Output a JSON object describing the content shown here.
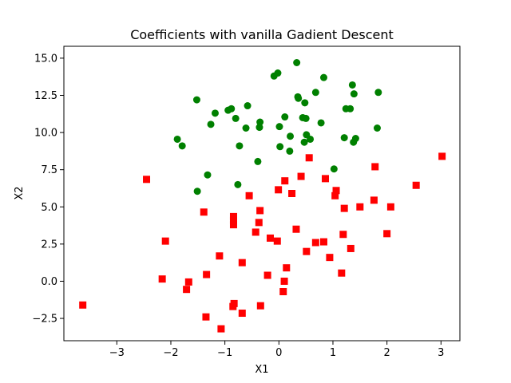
{
  "chart_data": {
    "type": "scatter",
    "title": "Coefficients with vanilla Gadient Descent",
    "xlabel": "X1",
    "ylabel": "X2",
    "xlim": [
      -3.98,
      3.35
    ],
    "ylim": [
      -4.0,
      15.8
    ],
    "xticks": [
      -3,
      -2,
      -1,
      0,
      1,
      2,
      3
    ],
    "xtick_labels": [
      "−3",
      "−2",
      "−1",
      "0",
      "1",
      "2",
      "3"
    ],
    "yticks": [
      -2.5,
      0.0,
      2.5,
      5.0,
      7.5,
      10.0,
      12.5,
      15.0
    ],
    "ytick_labels": [
      "−2.5",
      "0.0",
      "2.5",
      "5.0",
      "7.5",
      "10.0",
      "12.5",
      "15.0"
    ],
    "grid": false,
    "series": [
      {
        "marker": "circle",
        "color": "#008000",
        "points": [
          [
            0.33,
            14.7
          ],
          [
            -0.02,
            14.0
          ],
          [
            -0.09,
            13.8
          ],
          [
            0.83,
            13.7
          ],
          [
            1.36,
            13.2
          ],
          [
            1.39,
            12.6
          ],
          [
            1.84,
            12.7
          ],
          [
            0.68,
            12.7
          ],
          [
            0.35,
            12.4
          ],
          [
            0.36,
            12.3
          ],
          [
            -1.52,
            12.2
          ],
          [
            0.48,
            12.0
          ],
          [
            -0.58,
            11.8
          ],
          [
            -0.94,
            11.5
          ],
          [
            -0.88,
            11.6
          ],
          [
            1.24,
            11.6
          ],
          [
            1.32,
            11.6
          ],
          [
            -1.18,
            11.3
          ],
          [
            -0.8,
            10.95
          ],
          [
            0.11,
            11.05
          ],
          [
            0.44,
            11.0
          ],
          [
            0.5,
            10.95
          ],
          [
            -1.26,
            10.55
          ],
          [
            -0.35,
            10.7
          ],
          [
            0.78,
            10.65
          ],
          [
            0.01,
            10.4
          ],
          [
            -0.36,
            10.35
          ],
          [
            -0.61,
            10.3
          ],
          [
            1.82,
            10.3
          ],
          [
            0.51,
            9.85
          ],
          [
            0.21,
            9.75
          ],
          [
            0.58,
            9.55
          ],
          [
            1.21,
            9.65
          ],
          [
            1.42,
            9.6
          ],
          [
            1.38,
            9.35
          ],
          [
            -1.88,
            9.55
          ],
          [
            0.47,
            9.35
          ],
          [
            -1.79,
            9.1
          ],
          [
            0.02,
            9.05
          ],
          [
            -0.73,
            9.1
          ],
          [
            0.2,
            8.75
          ],
          [
            -0.39,
            8.05
          ],
          [
            1.02,
            7.55
          ],
          [
            -1.32,
            7.15
          ],
          [
            -0.76,
            6.5
          ],
          [
            -1.51,
            6.05
          ]
        ]
      },
      {
        "marker": "square",
        "color": "#ff0000",
        "points": [
          [
            3.02,
            8.4
          ],
          [
            0.56,
            8.3
          ],
          [
            1.78,
            7.7
          ],
          [
            0.41,
            7.05
          ],
          [
            0.86,
            6.9
          ],
          [
            -2.45,
            6.85
          ],
          [
            0.11,
            6.75
          ],
          [
            2.54,
            6.45
          ],
          [
            1.06,
            6.1
          ],
          [
            -0.01,
            6.15
          ],
          [
            0.24,
            5.9
          ],
          [
            -0.55,
            5.75
          ],
          [
            1.04,
            5.75
          ],
          [
            1.76,
            5.45
          ],
          [
            2.07,
            5.0
          ],
          [
            1.5,
            5.0
          ],
          [
            1.21,
            4.9
          ],
          [
            -0.35,
            4.75
          ],
          [
            -1.39,
            4.65
          ],
          [
            -0.84,
            4.35
          ],
          [
            -0.84,
            4.1
          ],
          [
            -0.37,
            3.95
          ],
          [
            -0.84,
            3.8
          ],
          [
            0.32,
            3.5
          ],
          [
            -0.43,
            3.3
          ],
          [
            2.0,
            3.2
          ],
          [
            1.19,
            3.15
          ],
          [
            -0.16,
            2.9
          ],
          [
            -0.03,
            2.7
          ],
          [
            -2.1,
            2.7
          ],
          [
            0.83,
            2.65
          ],
          [
            0.68,
            2.6
          ],
          [
            1.33,
            2.2
          ],
          [
            0.51,
            2.0
          ],
          [
            -1.1,
            1.7
          ],
          [
            0.94,
            1.6
          ],
          [
            -0.68,
            1.25
          ],
          [
            0.14,
            0.9
          ],
          [
            1.16,
            0.55
          ],
          [
            -1.34,
            0.45
          ],
          [
            -0.21,
            0.4
          ],
          [
            -2.16,
            0.15
          ],
          [
            0.1,
            0.0
          ],
          [
            -1.67,
            -0.05
          ],
          [
            -1.71,
            -0.55
          ],
          [
            0.08,
            -0.7
          ],
          [
            -3.63,
            -1.6
          ],
          [
            -0.83,
            -1.5
          ],
          [
            -0.85,
            -1.7
          ],
          [
            -0.34,
            -1.65
          ],
          [
            -0.68,
            -2.15
          ],
          [
            -1.35,
            -2.4
          ],
          [
            -1.07,
            -3.2
          ]
        ]
      }
    ]
  }
}
